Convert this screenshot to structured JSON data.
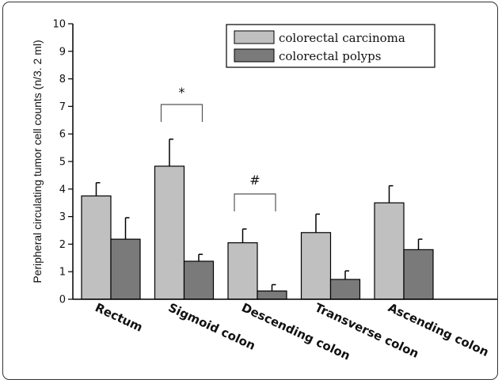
{
  "chart_data": {
    "type": "bar",
    "categories": [
      "Rectum",
      "Sigmoid colon",
      "Descending colon",
      "Transverse colon",
      "Ascending colon"
    ],
    "series": [
      {
        "name": "colorectal carcinoma",
        "color": "#c0c0c0",
        "values": [
          3.75,
          4.83,
          2.05,
          2.42,
          3.5
        ],
        "errors": [
          0.48,
          0.98,
          0.5,
          0.67,
          0.62
        ]
      },
      {
        "name": "colorectal polyps",
        "color": "#7a7a7a",
        "values": [
          2.18,
          1.38,
          0.3,
          0.72,
          1.8
        ],
        "errors": [
          0.78,
          0.25,
          0.23,
          0.31,
          0.38
        ]
      }
    ],
    "xlabel": "",
    "ylabel": "Peripheral circulating tumor cell counts (n/3. 2 ml)",
    "ylim": [
      0,
      10
    ],
    "yticks": [
      "0",
      "1",
      "2",
      "3",
      "4",
      "5",
      "6",
      "7",
      "8",
      "9",
      "10"
    ],
    "legend_position": "top-right",
    "grid": false,
    "annotations": [
      {
        "text": "*",
        "category_index": 1
      },
      {
        "text": "#",
        "category_index": 2
      }
    ]
  }
}
